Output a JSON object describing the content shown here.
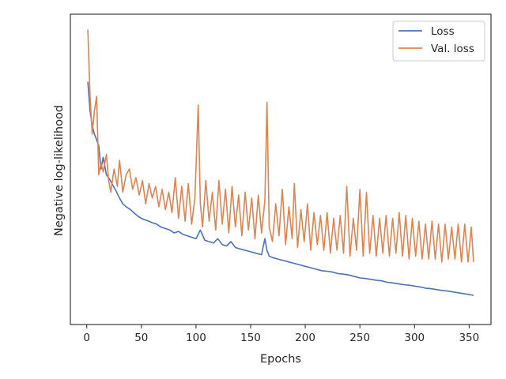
{
  "chart_data": {
    "type": "line",
    "title": "",
    "xlabel": "Epochs",
    "ylabel": "Negative log-likelihood",
    "xlim": [
      -15,
      370
    ],
    "ylim": [
      0,
      100
    ],
    "y_ticks_shown": false,
    "x_ticks": [
      0,
      50,
      100,
      150,
      200,
      250,
      300,
      350
    ],
    "grid": false,
    "legend": {
      "position": "top-right",
      "entries": [
        "Loss",
        "Val. loss"
      ]
    },
    "series": [
      {
        "name": "Loss",
        "color": "#4c72b0",
        "x": [
          1,
          3,
          5,
          7,
          9,
          11,
          13,
          15,
          18,
          20,
          23,
          26,
          30,
          33,
          36,
          40,
          43,
          46,
          50,
          53,
          57,
          60,
          64,
          68,
          72,
          76,
          80,
          84,
          88,
          92,
          96,
          100,
          104,
          108,
          112,
          116,
          120,
          124,
          128,
          132,
          136,
          140,
          145,
          150,
          155,
          160,
          163,
          165,
          167,
          170,
          175,
          180,
          185,
          190,
          195,
          200,
          205,
          210,
          215,
          220,
          225,
          230,
          235,
          240,
          245,
          250,
          255,
          260,
          265,
          270,
          275,
          280,
          285,
          290,
          295,
          300,
          305,
          310,
          315,
          320,
          325,
          330,
          335,
          340,
          345,
          350,
          354
        ],
        "values": [
          80,
          70,
          65,
          62,
          60,
          58,
          50,
          54,
          48,
          47,
          45,
          43,
          40,
          38,
          37,
          36,
          35,
          34,
          33,
          32.5,
          32,
          31.5,
          31,
          30,
          29.5,
          29,
          28,
          28.5,
          27.5,
          27,
          26.5,
          26,
          29,
          25.5,
          25,
          24.5,
          26,
          24,
          23.5,
          25,
          23,
          22.5,
          22,
          21.5,
          21,
          20.5,
          26,
          22,
          20,
          19.5,
          19,
          18.5,
          18,
          17.5,
          17,
          16.5,
          16,
          15.5,
          15,
          14.8,
          14.5,
          14,
          13.8,
          13.5,
          13,
          12.5,
          12.3,
          12,
          11.7,
          11.5,
          11,
          10.8,
          10.5,
          10.2,
          10,
          9.7,
          9.4,
          9,
          8.8,
          8.5,
          8.2,
          8,
          7.7,
          7.4,
          7.1,
          6.8,
          6.5
        ]
      },
      {
        "name": "Val. loss",
        "color": "#dd8452",
        "x": [
          1,
          3,
          5,
          7,
          9,
          11,
          13,
          15,
          18,
          20,
          22,
          25,
          28,
          30,
          33,
          36,
          39,
          42,
          45,
          48,
          51,
          54,
          57,
          60,
          63,
          66,
          69,
          72,
          75,
          78,
          81,
          84,
          87,
          90,
          93,
          96,
          99,
          102,
          104,
          106,
          109,
          112,
          115,
          118,
          121,
          124,
          127,
          130,
          133,
          136,
          139,
          142,
          145,
          148,
          151,
          154,
          157,
          160,
          163,
          165,
          167,
          170,
          173,
          176,
          179,
          182,
          185,
          188,
          190,
          193,
          196,
          199,
          202,
          205,
          208,
          211,
          214,
          217,
          220,
          223,
          226,
          229,
          232,
          235,
          238,
          241,
          244,
          247,
          250,
          253,
          256,
          259,
          262,
          265,
          268,
          271,
          274,
          277,
          280,
          283,
          286,
          289,
          292,
          295,
          298,
          301,
          304,
          307,
          310,
          313,
          316,
          319,
          322,
          325,
          328,
          331,
          334,
          337,
          340,
          343,
          346,
          349,
          352,
          354
        ],
        "values": [
          98,
          75,
          62,
          70,
          75,
          48,
          52,
          49,
          55,
          46,
          42,
          50,
          44,
          53,
          42,
          48,
          50,
          43,
          47,
          41,
          46,
          38,
          45,
          40,
          44,
          37,
          43,
          36,
          42,
          35,
          47,
          33,
          44,
          32,
          45,
          31,
          40,
          72,
          38,
          30,
          46,
          32,
          42,
          29,
          46,
          31,
          43,
          28,
          44,
          30,
          41,
          27,
          42,
          29,
          40,
          26,
          41,
          28,
          39,
          73,
          30,
          25,
          38,
          27,
          43,
          24,
          37,
          26,
          45,
          23,
          36,
          25,
          38,
          22,
          35,
          24,
          34,
          22,
          35,
          21,
          33,
          22,
          34,
          21,
          44,
          20,
          33,
          22,
          43,
          20,
          42,
          21,
          34,
          20,
          33,
          21,
          34,
          20,
          33,
          21,
          35,
          20,
          34,
          19,
          33,
          20,
          32,
          19,
          31,
          19,
          32,
          19,
          31,
          18,
          31,
          19,
          30,
          19,
          31,
          18,
          31,
          18,
          30,
          18
        ]
      }
    ]
  }
}
